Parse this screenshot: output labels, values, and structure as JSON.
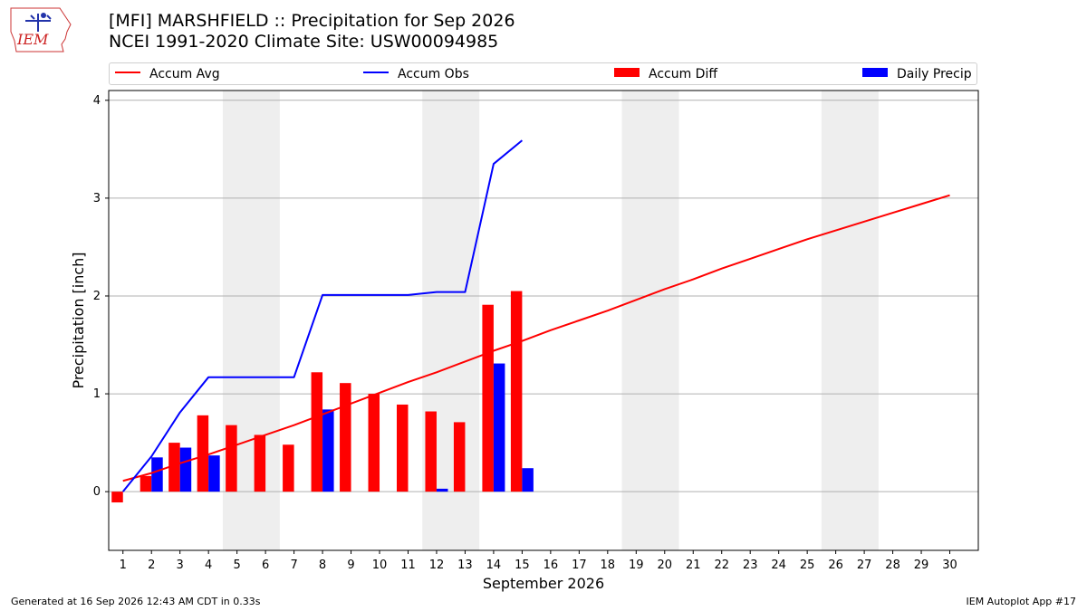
{
  "header": {
    "title_line1": "[MFI] MARSHFIELD :: Precipitation for Sep 2026",
    "title_line2": "NCEI 1991-2020 Climate Site: USW00094985",
    "logo_text": "IEM"
  },
  "legend": {
    "accum_avg": "Accum Avg",
    "accum_obs": "Accum Obs",
    "accum_diff": "Accum Diff",
    "daily_precip": "Daily Precip"
  },
  "colors": {
    "accum_avg": "#ff0000",
    "accum_obs": "#0000ff",
    "accum_diff": "#ff0000",
    "daily_precip": "#0000ff",
    "weekend_band": "#eeeeee",
    "grid": "#b0b0b0"
  },
  "chart_data": {
    "type": "bar",
    "title": "[MFI] MARSHFIELD :: Precipitation for Sep 2026",
    "subtitle": "NCEI 1991-2020 Climate Site: USW00094985",
    "xlabel": "September 2026",
    "ylabel": "Precipitation [inch]",
    "ylim": [
      -0.6,
      4.1
    ],
    "xlim": [
      0.5,
      31.0
    ],
    "yticks": [
      0,
      1,
      2,
      3,
      4
    ],
    "ytick_labels": [
      "0",
      "1",
      "2",
      "3",
      "4"
    ],
    "categories": [
      "1",
      "2",
      "3",
      "4",
      "5",
      "6",
      "7",
      "8",
      "9",
      "10",
      "11",
      "12",
      "13",
      "14",
      "15",
      "16",
      "17",
      "18",
      "19",
      "20",
      "21",
      "22",
      "23",
      "24",
      "25",
      "26",
      "27",
      "28",
      "29",
      "30"
    ],
    "grid": "horizontal",
    "legend_position": "top",
    "weekend_bands": [
      [
        4.5,
        6.5
      ],
      [
        11.5,
        13.5
      ],
      [
        18.5,
        20.5
      ],
      [
        25.5,
        27.5
      ]
    ],
    "series": [
      {
        "name": "Accum Avg",
        "type": "line",
        "x": [
          1,
          2,
          3,
          4,
          5,
          6,
          7,
          8,
          9,
          10,
          11,
          12,
          13,
          14,
          15,
          16,
          17,
          18,
          19,
          20,
          21,
          22,
          23,
          24,
          25,
          26,
          27,
          28,
          29,
          30
        ],
        "values": [
          0.11,
          0.19,
          0.29,
          0.38,
          0.48,
          0.58,
          0.68,
          0.79,
          0.9,
          1.01,
          1.12,
          1.22,
          1.33,
          1.44,
          1.54,
          1.65,
          1.75,
          1.85,
          1.96,
          2.07,
          2.17,
          2.28,
          2.38,
          2.48,
          2.58,
          2.67,
          2.76,
          2.85,
          2.94,
          3.03
        ]
      },
      {
        "name": "Accum Obs",
        "type": "line",
        "x": [
          1,
          2,
          3,
          4,
          5,
          6,
          7,
          8,
          9,
          10,
          11,
          12,
          13,
          14,
          15
        ],
        "values": [
          0.0,
          0.36,
          0.81,
          1.17,
          1.17,
          1.17,
          1.17,
          2.01,
          2.01,
          2.01,
          2.01,
          2.04,
          2.04,
          3.35,
          3.59
        ]
      },
      {
        "name": "Accum Diff",
        "type": "bar",
        "x": [
          1,
          2,
          3,
          4,
          5,
          6,
          7,
          8,
          9,
          10,
          11,
          12,
          13,
          14,
          15
        ],
        "values": [
          -0.11,
          0.16,
          0.5,
          0.78,
          0.68,
          0.58,
          0.48,
          1.22,
          1.11,
          1.0,
          0.89,
          0.82,
          0.71,
          1.91,
          2.05
        ]
      },
      {
        "name": "Daily Precip",
        "type": "bar",
        "x": [
          1,
          2,
          3,
          4,
          5,
          6,
          7,
          8,
          9,
          10,
          11,
          12,
          13,
          14,
          15
        ],
        "values": [
          0.0,
          0.35,
          0.45,
          0.37,
          0.0,
          0.0,
          0.0,
          0.84,
          0.0,
          0.0,
          0.0,
          0.03,
          0.0,
          1.31,
          0.24
        ]
      }
    ]
  },
  "footer": {
    "generated": "Generated at 16 Sep 2026 12:43 AM CDT in 0.33s",
    "app": "IEM Autoplot App #17"
  }
}
